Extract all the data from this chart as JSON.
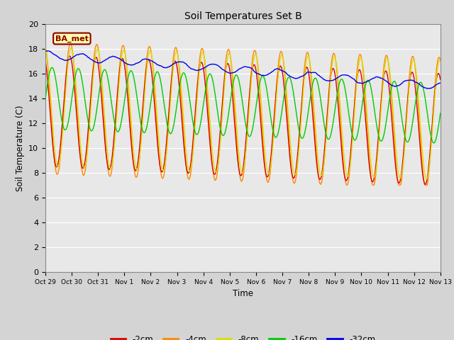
{
  "title": "Soil Temperatures Set B",
  "xlabel": "Time",
  "ylabel": "Soil Temperature (C)",
  "ylim": [
    0,
    20
  ],
  "yticks": [
    0,
    2,
    4,
    6,
    8,
    10,
    12,
    14,
    16,
    18,
    20
  ],
  "fig_bg": "#d4d4d4",
  "plot_bg": "#e8e8e8",
  "legend_label": "BA_met",
  "series_labels": [
    "-2cm",
    "-4cm",
    "-8cm",
    "-16cm",
    "-32cm"
  ],
  "series_colors": [
    "#dd0000",
    "#ff8800",
    "#dddd00",
    "#00cc00",
    "#0000ee"
  ],
  "line_width": 1.0,
  "xtick_labels": [
    "Oct 29",
    "Oct 30",
    "Oct 31",
    "Nov 1",
    "Nov 2",
    "Nov 3",
    "Nov 4",
    "Nov 5",
    "Nov 6",
    "Nov 7",
    "Nov 8",
    "Nov 9",
    "Nov 10",
    "Nov 11",
    "Nov 12",
    "Nov 13"
  ],
  "xtick_positions": [
    0,
    1,
    2,
    3,
    4,
    5,
    6,
    7,
    8,
    9,
    10,
    11,
    12,
    13,
    14,
    15
  ]
}
